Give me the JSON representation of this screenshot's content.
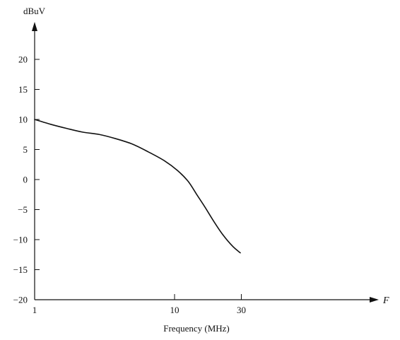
{
  "chart_data": {
    "type": "line",
    "title": "",
    "ylabel": "dBuV",
    "xlabel": "Frequency (MHz)",
    "x_axis_letter": "F",
    "x_scale": "log",
    "xlim": [
      1,
      60
    ],
    "ylim": [
      -20,
      25
    ],
    "grid": false,
    "legend": "none",
    "x_ticks": [
      1,
      10,
      30
    ],
    "x_tick_labels": [
      "1",
      "10",
      "30"
    ],
    "y_ticks": [
      -20,
      -15,
      -10,
      -5,
      0,
      5,
      10,
      15,
      20
    ],
    "y_tick_labels": [
      "−20",
      "−15",
      "−10",
      "−5",
      "0",
      "5",
      "10",
      "15",
      "20"
    ],
    "series": [
      {
        "color": "#111111",
        "x": [
          1,
          1.3,
          1.7,
          2.2,
          2.9,
          3.8,
          5,
          6.5,
          8.5,
          10.5,
          12.5,
          14.5,
          16.5,
          19,
          22,
          26,
          29.5
        ],
        "y": [
          10,
          9.2,
          8.5,
          7.9,
          7.5,
          6.8,
          5.9,
          4.6,
          3.1,
          1.5,
          -0.3,
          -2.6,
          -4.6,
          -6.9,
          -9.1,
          -11.1,
          -12.2
        ]
      }
    ]
  }
}
